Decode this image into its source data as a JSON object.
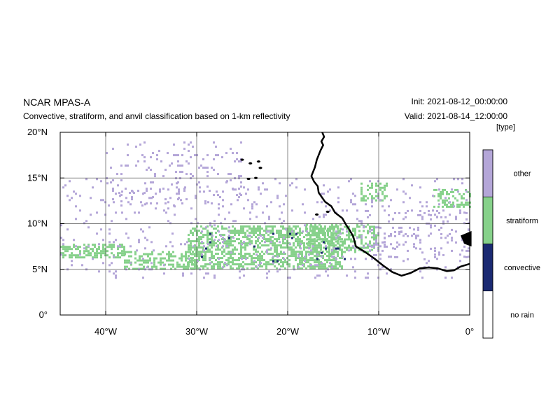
{
  "header": {
    "model": "NCAR MPAS-A",
    "description": "Convective, stratiform, and anvil classification based on 1-km reflectivity",
    "init": "Init: 2021-08-12_00:00:00",
    "valid": "Valid: 2021-08-14_12:00:00"
  },
  "map": {
    "lon_range": [
      -45,
      0
    ],
    "lat_range": [
      0,
      20
    ],
    "x_ticks": [
      {
        "lon": -40,
        "label": "40°W"
      },
      {
        "lon": -30,
        "label": "30°W"
      },
      {
        "lon": -20,
        "label": "20°W"
      },
      {
        "lon": -10,
        "label": "10°W"
      },
      {
        "lon": 0,
        "label": "0°"
      }
    ],
    "y_ticks": [
      {
        "lat": 0,
        "label": "0°"
      },
      {
        "lat": 5,
        "label": "5°N"
      },
      {
        "lat": 10,
        "label": "10°N"
      },
      {
        "lat": 15,
        "label": "15°N"
      },
      {
        "lat": 20,
        "label": "20°N"
      }
    ],
    "grid": true,
    "coastline": [
      [
        -16.2,
        20.0
      ],
      [
        -16.0,
        19.5
      ],
      [
        -16.3,
        19.0
      ],
      [
        -16.1,
        18.6
      ],
      [
        -16.4,
        18.0
      ],
      [
        -16.8,
        17.0
      ],
      [
        -17.0,
        16.2
      ],
      [
        -17.4,
        15.2
      ],
      [
        -17.1,
        14.6
      ],
      [
        -16.7,
        14.1
      ],
      [
        -16.6,
        13.4
      ],
      [
        -15.9,
        12.4
      ],
      [
        -15.2,
        11.9
      ],
      [
        -14.8,
        11.2
      ],
      [
        -14.0,
        10.6
      ],
      [
        -13.6,
        9.9
      ],
      [
        -13.2,
        9.3
      ],
      [
        -12.8,
        8.6
      ],
      [
        -12.5,
        7.5
      ],
      [
        -11.5,
        6.9
      ],
      [
        -10.5,
        6.2
      ],
      [
        -9.5,
        5.4
      ],
      [
        -8.5,
        4.7
      ],
      [
        -7.5,
        4.3
      ],
      [
        -6.5,
        4.6
      ],
      [
        -5.5,
        5.1
      ],
      [
        -4.5,
        5.2
      ],
      [
        -3.5,
        5.1
      ],
      [
        -2.5,
        4.8
      ],
      [
        -1.7,
        4.9
      ],
      [
        -1.0,
        5.3
      ],
      [
        0.0,
        5.6
      ]
    ],
    "islands": [
      {
        "lon": -25.0,
        "lat": 17.0
      },
      {
        "lon": -24.1,
        "lat": 16.6
      },
      {
        "lon": -23.2,
        "lat": 16.8
      },
      {
        "lon": -23.0,
        "lat": 16.1
      },
      {
        "lon": -24.3,
        "lat": 14.9
      },
      {
        "lon": -23.5,
        "lat": 15.0
      },
      {
        "lon": -16.8,
        "lat": 11.0
      },
      {
        "lon": -15.6,
        "lat": 11.3
      }
    ]
  },
  "legend": {
    "unit": "[type]",
    "entries": [
      {
        "label": "other",
        "color": "#b4a6d8"
      },
      {
        "label": "stratiform",
        "color": "#86d18a"
      },
      {
        "label": "convective",
        "color": "#1b2a72"
      },
      {
        "label": "no rain",
        "color": "#ffffff"
      }
    ]
  },
  "precip_regions": [
    {
      "type": "stratiform",
      "lon": [
        -45,
        -38
      ],
      "lat": [
        6.2,
        7.8
      ],
      "density": 0.55
    },
    {
      "type": "stratiform",
      "lon": [
        -38,
        -30
      ],
      "lat": [
        5.0,
        7.0
      ],
      "density": 0.45
    },
    {
      "type": "stratiform",
      "lon": [
        -31,
        -14
      ],
      "lat": [
        5.2,
        9.8
      ],
      "density": 0.55
    },
    {
      "type": "stratiform",
      "lon": [
        -18,
        -10
      ],
      "lat": [
        7.0,
        10.0
      ],
      "density": 0.45
    },
    {
      "type": "stratiform",
      "lon": [
        -12,
        -9
      ],
      "lat": [
        12.5,
        14.5
      ],
      "density": 0.45
    },
    {
      "type": "stratiform",
      "lon": [
        -4,
        0
      ],
      "lat": [
        11.8,
        13.8
      ],
      "density": 0.45
    },
    {
      "type": "other",
      "lon": [
        -45,
        0
      ],
      "lat": [
        4.0,
        15.0
      ],
      "density": 0.05
    },
    {
      "type": "other",
      "lon": [
        -40,
        -25
      ],
      "lat": [
        12.0,
        19.0
      ],
      "density": 0.07
    },
    {
      "type": "other",
      "lon": [
        -12,
        0
      ],
      "lat": [
        6.0,
        11.5
      ],
      "density": 0.09
    },
    {
      "type": "convective",
      "lon": [
        -30,
        -13
      ],
      "lat": [
        6.0,
        9.0
      ],
      "density": 0.02
    }
  ]
}
